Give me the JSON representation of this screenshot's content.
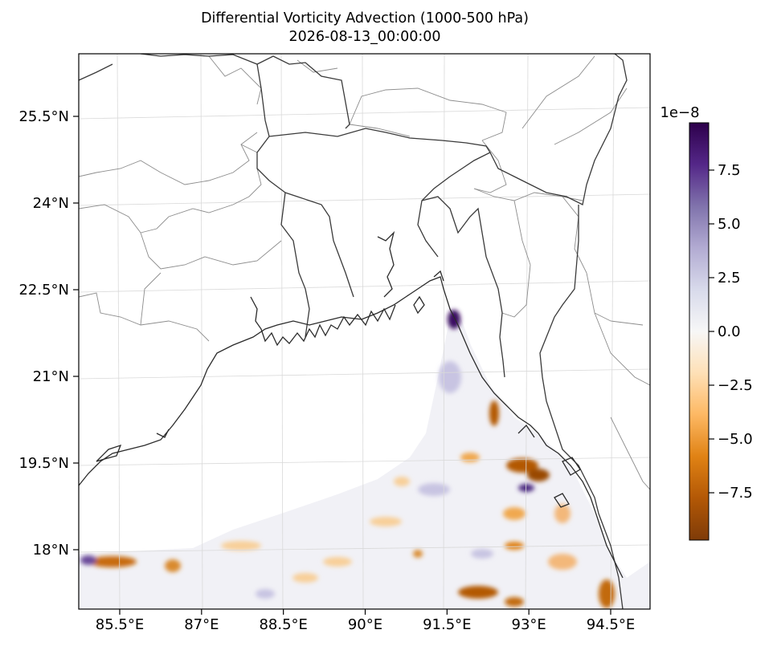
{
  "title": "Differential Vorticity Advection (1000-500 hPa)",
  "subtitle": "2026-08-13_00:00:00",
  "map": {
    "lon_labels": [
      "85.5°E",
      "87°E",
      "88.5°E",
      "90°E",
      "91.5°E",
      "93°E",
      "94.5°E"
    ],
    "lat_labels": [
      "25.5°N",
      "24°N",
      "22.5°N",
      "21°N",
      "19.5°N",
      "18°N"
    ],
    "lon_values": [
      85.5,
      87,
      88.5,
      90,
      91.5,
      93,
      94.5
    ],
    "lat_values": [
      25.5,
      24,
      22.5,
      21,
      19.5,
      18
    ]
  },
  "colorbar": {
    "exponent_label": "1e−8",
    "tick_labels": [
      "7.5",
      "5.0",
      "2.5",
      "0.0",
      "−2.5",
      "−5.0",
      "−7.5"
    ],
    "tick_values": [
      7.5,
      5.0,
      2.5,
      0.0,
      -2.5,
      -5.0,
      -7.5
    ],
    "colormap": "PuOr",
    "colors": [
      "#7f3b08",
      "#b35806",
      "#e08214",
      "#fdb863",
      "#fee0b6",
      "#f7f7f7",
      "#d8daeb",
      "#b2abd2",
      "#8073ac",
      "#542788",
      "#2d004b"
    ]
  }
}
